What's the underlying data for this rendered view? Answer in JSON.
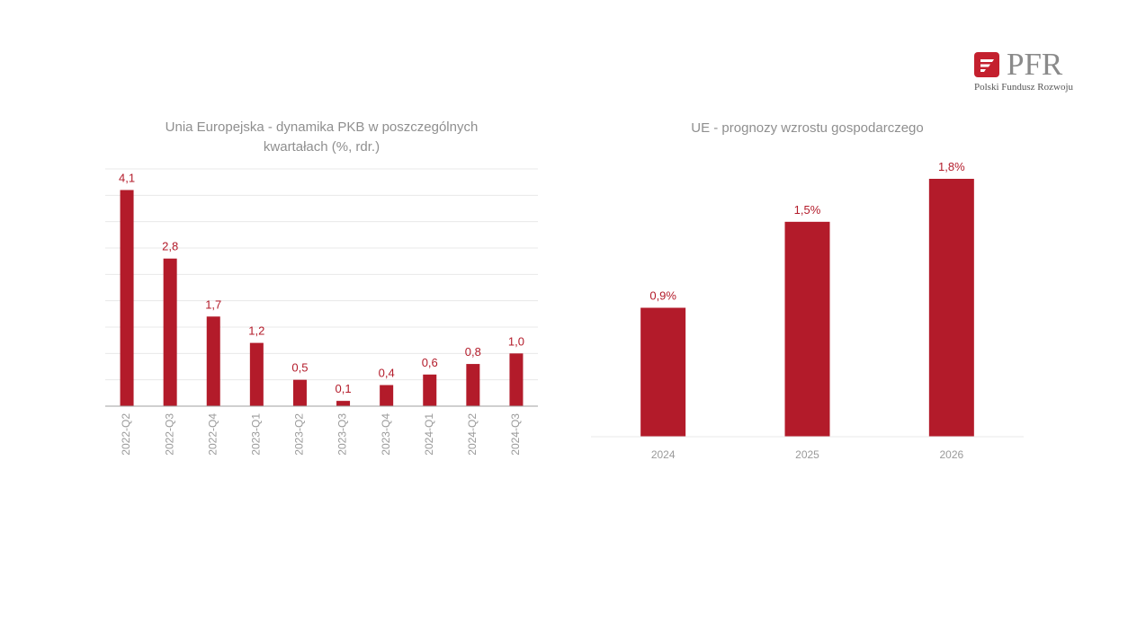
{
  "logo": {
    "text": "PFR",
    "subtitle": "Polski Fundusz Rozwoju"
  },
  "colors": {
    "bar": "#b31b2a",
    "label": "#b31b2a",
    "axis_text": "#9a9a9a",
    "title": "#8f8f8f",
    "grid": "#e8e8e8",
    "axis_line": "#a0a0a0"
  },
  "chart_data": [
    {
      "type": "bar",
      "title": "Unia Europejska - dynamika PKB w poszczególnych kwartałach (%, rdr.)",
      "categories": [
        "2022-Q2",
        "2022-Q3",
        "2022-Q4",
        "2023-Q1",
        "2023-Q2",
        "2023-Q3",
        "2023-Q4",
        "2024-Q1",
        "2024-Q2",
        "2024-Q3"
      ],
      "values": [
        4.1,
        2.8,
        1.7,
        1.2,
        0.5,
        0.1,
        0.4,
        0.6,
        0.8,
        1.0
      ],
      "data_labels": [
        "4,1",
        "2,8",
        "1,7",
        "1,2",
        "0,5",
        "0,1",
        "0,4",
        "0,6",
        "0,8",
        "1,0"
      ],
      "ylim": [
        0,
        4.5
      ],
      "grid": true,
      "xlabel": "",
      "ylabel": ""
    },
    {
      "type": "bar",
      "title": "UE - prognozy wzrostu gospodarczego",
      "categories": [
        "2024",
        "2025",
        "2026"
      ],
      "values": [
        0.9,
        1.5,
        1.8
      ],
      "data_labels": [
        "0,9%",
        "1,5%",
        "1,8%"
      ],
      "ylim": [
        0,
        2.0
      ],
      "grid": false,
      "xlabel": "",
      "ylabel": ""
    }
  ]
}
